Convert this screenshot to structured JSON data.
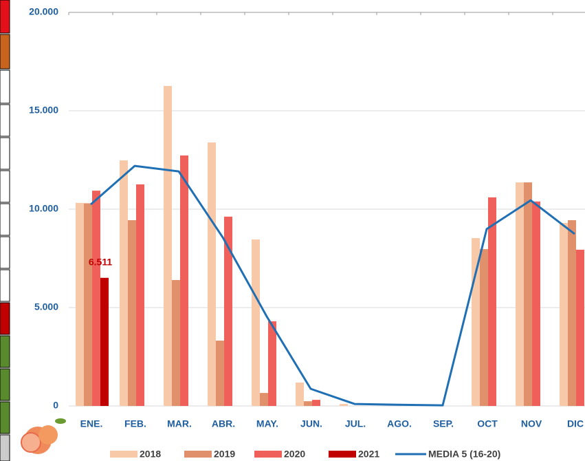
{
  "chart_data": {
    "type": "bar",
    "categories": [
      "ENE.",
      "FEB.",
      "MAR.",
      "ABR.",
      "MAY.",
      "JUN.",
      "JUL.",
      "AGO.",
      "SEP.",
      "OCT",
      "NOV",
      "DIC"
    ],
    "series": [
      {
        "name": "2018",
        "color": "#f8c9a8",
        "values": [
          10320,
          12480,
          16260,
          13390,
          8460,
          1190,
          100,
          0,
          0,
          8530,
          11360,
          9300
        ]
      },
      {
        "name": "2019",
        "color": "#e0906a",
        "values": [
          10300,
          9440,
          6400,
          3320,
          660,
          240,
          0,
          0,
          0,
          7970,
          11360,
          9440
        ]
      },
      {
        "name": "2020",
        "color": "#f0605a",
        "values": [
          10940,
          11260,
          12730,
          9620,
          4300,
          310,
          0,
          0,
          0,
          10600,
          10390,
          7940
        ]
      },
      {
        "name": "2021",
        "color": "#c00000",
        "values": [
          6511,
          null,
          null,
          null,
          null,
          null,
          null,
          null,
          null,
          null,
          null,
          null
        ],
        "value_labels": [
          "6.511",
          null,
          null,
          null,
          null,
          null,
          null,
          null,
          null,
          null,
          null,
          null
        ]
      }
    ],
    "line_series": {
      "name": "MEDIA 5 (16-20)",
      "color": "#1f6fb4",
      "values": [
        10240,
        12200,
        11920,
        8570,
        4550,
        870,
        100,
        60,
        30,
        8990,
        10450,
        8740
      ]
    },
    "ylim": [
      0,
      20000
    ],
    "yticks": [
      0,
      {
        "value": 5000,
        "label": "5.000"
      },
      {
        "value": 10000,
        "label": "10.000"
      },
      {
        "value": 15000,
        "label": "15.000"
      },
      {
        "value": 20000,
        "label": "20.000"
      }
    ],
    "grid": true
  }
}
